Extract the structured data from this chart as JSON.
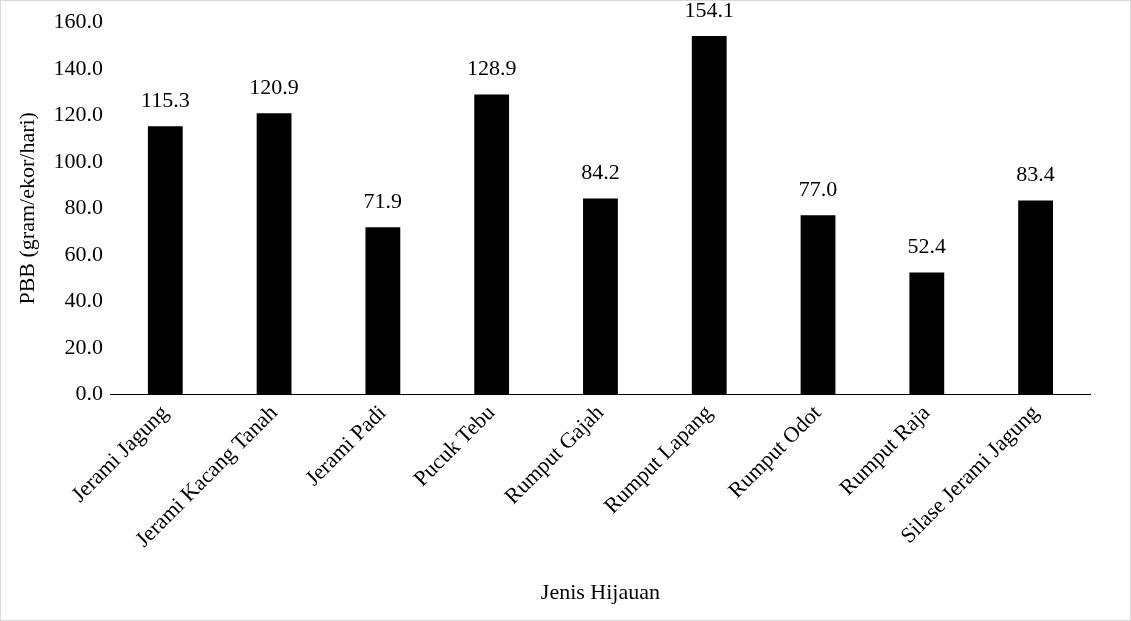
{
  "chart_data": {
    "type": "bar",
    "xlabel": "Jenis Hijauan",
    "ylabel": "PBB (gram/ekor/hari)",
    "categories": [
      "Jerami Jagung",
      "Jerami Kacang Tanah",
      "Jerami Padi",
      "Pucuk Tebu",
      "Rumput Gajah",
      "Rumput Lapang",
      "Rumput Odot",
      "Rumput Raja",
      "Silase Jerami Jagung"
    ],
    "values": [
      115.3,
      120.9,
      71.9,
      128.9,
      84.2,
      154.1,
      77.0,
      52.4,
      83.4
    ],
    "value_labels": [
      "115.3",
      "120.9",
      "71.9",
      "128.9",
      "84.2",
      "154.1",
      "77.0",
      "52.4",
      "83.4"
    ],
    "color": "#000000",
    "ylim": [
      0,
      160
    ],
    "yticks": [
      {
        "value": 0,
        "label": "0.0"
      },
      {
        "value": 20,
        "label": "20.0"
      },
      {
        "value": 40,
        "label": "40.0"
      },
      {
        "value": 60,
        "label": "60.0"
      },
      {
        "value": 80,
        "label": "80.0"
      },
      {
        "value": 100,
        "label": "100.0"
      },
      {
        "value": 120,
        "label": "120.0"
      },
      {
        "value": 140,
        "label": "140.0"
      },
      {
        "value": 160,
        "label": "160.0"
      }
    ],
    "grid": false,
    "legend": false
  }
}
